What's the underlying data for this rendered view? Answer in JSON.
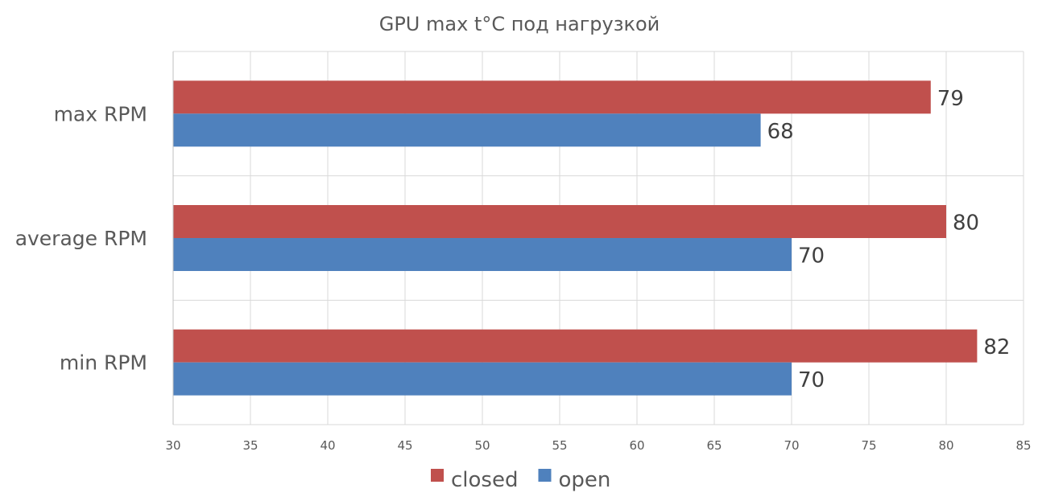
{
  "chart_data": {
    "type": "bar",
    "orientation": "horizontal",
    "title": "GPU max t°C под нагрузкой",
    "xlabel": "",
    "ylabel": "",
    "categories": [
      "max RPM",
      "average RPM",
      "min RPM"
    ],
    "series": [
      {
        "name": "closed",
        "values": [
          79,
          80,
          82
        ],
        "color": "#C0504D"
      },
      {
        "name": "open",
        "values": [
          68,
          70,
          70
        ],
        "color": "#4F81BD"
      }
    ],
    "xlim": [
      30,
      85
    ],
    "x_ticks": [
      30,
      35,
      40,
      45,
      50,
      55,
      60,
      65,
      70,
      75,
      80,
      85
    ],
    "grid": true,
    "legend_position": "bottom",
    "data_labels": true
  }
}
